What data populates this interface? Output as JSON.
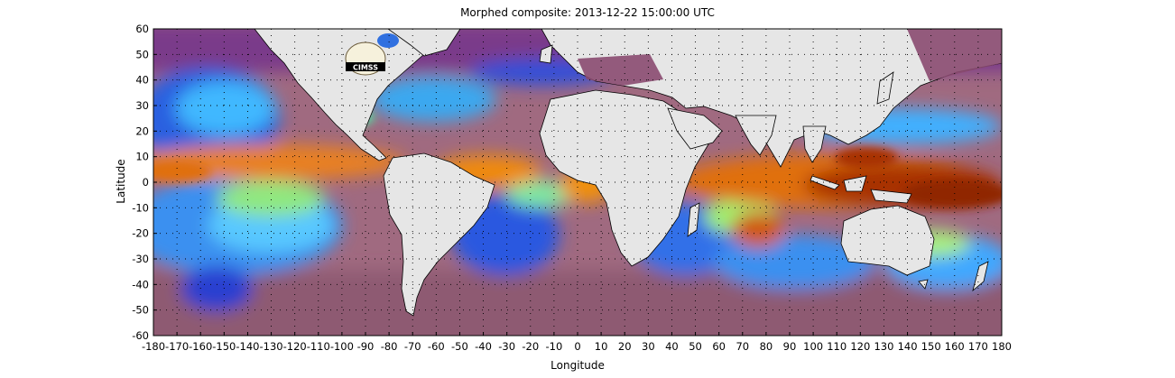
{
  "title": "Morphed composite: 2013-12-22 15:00:00 UTC",
  "logo_text": "CIMSS",
  "chart_data": {
    "type": "heatmap",
    "title": "Morphed composite: 2013-12-22 15:00:00 UTC",
    "xlabel": "Longitude",
    "ylabel": "Latitude",
    "xlim": [
      -180,
      180
    ],
    "ylim": [
      -60,
      60
    ],
    "grid": "dotted",
    "x_ticks": [
      -180,
      -170,
      -160,
      -150,
      -140,
      -130,
      -120,
      -110,
      -100,
      -90,
      -80,
      -70,
      -60,
      -50,
      -40,
      -30,
      -20,
      -10,
      0,
      10,
      20,
      30,
      40,
      50,
      60,
      70,
      80,
      90,
      100,
      110,
      120,
      130,
      140,
      150,
      160,
      170,
      180
    ],
    "y_ticks": [
      60,
      50,
      40,
      30,
      20,
      10,
      0,
      -10,
      -20,
      -30,
      -40,
      -50,
      -60
    ],
    "colors": {
      "land": "#e6e6e6",
      "very_dry": "#5a1470",
      "dry": "#9a5a8a",
      "mid": "#2050e0",
      "moist": "#40c0ff",
      "humid": "#9cf070",
      "wet": "#f08010",
      "very_wet": "#8a2000"
    }
  }
}
